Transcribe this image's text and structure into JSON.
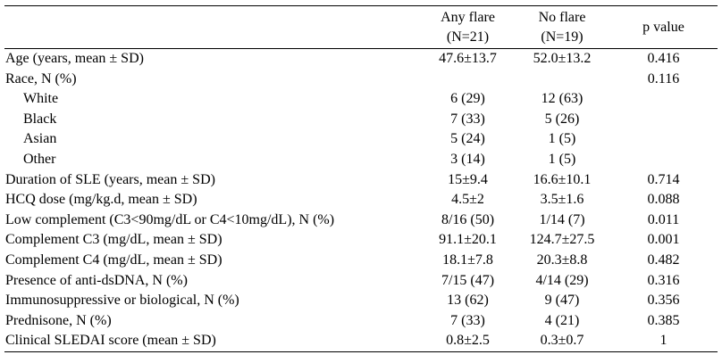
{
  "table": {
    "headers": {
      "label": "",
      "any_flare": {
        "line1": "Any flare",
        "line2": "(N=21)"
      },
      "no_flare": {
        "line1": "No flare",
        "line2": "(N=19)"
      },
      "p_value": "p value"
    },
    "rows": [
      {
        "label": "Age (years, mean ± SD)",
        "indent": false,
        "any": "47.6±13.7",
        "no": "52.0±13.2",
        "p": "0.416"
      },
      {
        "label": "Race, N (%)",
        "indent": false,
        "any": "",
        "no": "",
        "p": "0.116"
      },
      {
        "label": "White",
        "indent": true,
        "any": "6 (29)",
        "no": "12 (63)",
        "p": ""
      },
      {
        "label": "Black",
        "indent": true,
        "any": "7 (33)",
        "no": "5 (26)",
        "p": ""
      },
      {
        "label": "Asian",
        "indent": true,
        "any": "5 (24)",
        "no": "1 (5)",
        "p": ""
      },
      {
        "label": "Other",
        "indent": true,
        "any": "3 (14)",
        "no": "1 (5)",
        "p": ""
      },
      {
        "label": "Duration of SLE (years, mean ± SD)",
        "indent": false,
        "any": "15±9.4",
        "no": "16.6±10.1",
        "p": "0.714"
      },
      {
        "label": "HCQ dose (mg/kg.d, mean ± SD)",
        "indent": false,
        "any": "4.5±2",
        "no": "3.5±1.6",
        "p": "0.088"
      },
      {
        "label": "Low complement (C3<90mg/dL or C4<10mg/dL), N (%)",
        "indent": false,
        "any": "8/16 (50)",
        "no": "1/14 (7)",
        "p": "0.011"
      },
      {
        "label": "Complement C3 (mg/dL, mean ± SD)",
        "indent": false,
        "any": "91.1±20.1",
        "no": "124.7±27.5",
        "p": "0.001"
      },
      {
        "label": "Complement C4 (mg/dL, mean ± SD)",
        "indent": false,
        "any": "18.1±7.8",
        "no": "20.3±8.8",
        "p": "0.482"
      },
      {
        "label": "Presence of anti-dsDNA, N (%)",
        "indent": false,
        "any": "7/15 (47)",
        "no": "4/14 (29)",
        "p": "0.316"
      },
      {
        "label": "Immunosuppressive or biological, N (%)",
        "indent": false,
        "any": "13 (62)",
        "no": "9 (47)",
        "p": "0.356"
      },
      {
        "label": "Prednisone, N (%)",
        "indent": false,
        "any": "7 (33)",
        "no": "4 (21)",
        "p": "0.385"
      },
      {
        "label": "Clinical SLEDAI score (mean ± SD)",
        "indent": false,
        "any": "0.8±2.5",
        "no": "0.3±0.7",
        "p": "1"
      }
    ]
  }
}
